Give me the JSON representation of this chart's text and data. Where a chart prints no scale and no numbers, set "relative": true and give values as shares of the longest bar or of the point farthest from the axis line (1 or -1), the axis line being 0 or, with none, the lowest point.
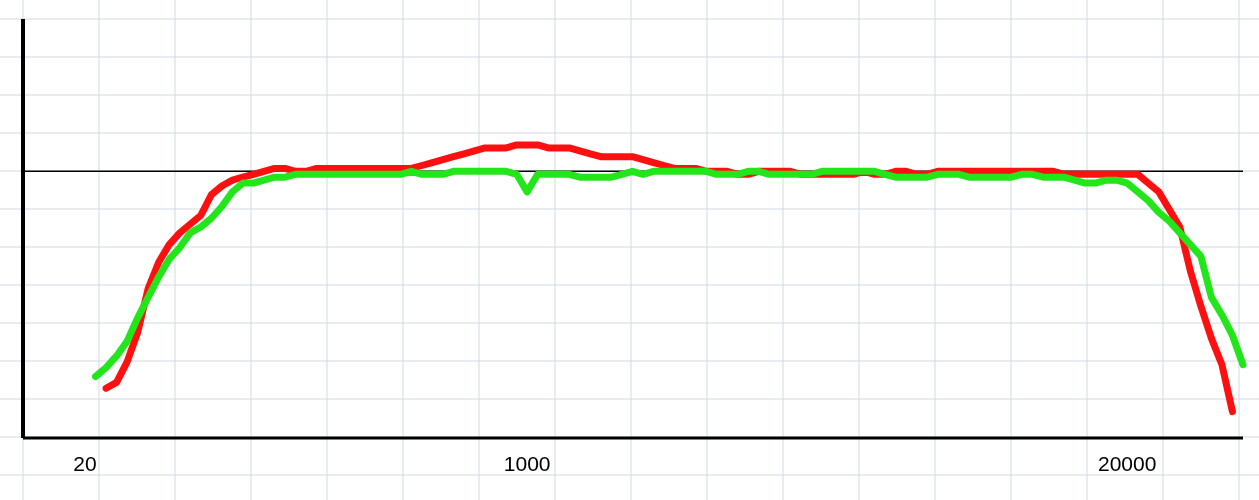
{
  "chart_data": {
    "type": "line",
    "relative": true,
    "grid": true,
    "line_style": "solid",
    "categories": [
      "20",
      null,
      null,
      null,
      null,
      null,
      null,
      null,
      null,
      null,
      null,
      null,
      null,
      null,
      null,
      null,
      null,
      null,
      null,
      null,
      null,
      null,
      null,
      null,
      null,
      null,
      null,
      null,
      null,
      null,
      null,
      null,
      null,
      null,
      null,
      null,
      null,
      null,
      null,
      null,
      null,
      null,
      "1000",
      null,
      null,
      null,
      null,
      null,
      null,
      null,
      null,
      null,
      null,
      null,
      null,
      null,
      null,
      null,
      null,
      null,
      null,
      null,
      null,
      null,
      null,
      null,
      null,
      null,
      null,
      null,
      null,
      null,
      null,
      null,
      null,
      null,
      null,
      null,
      null,
      null,
      null,
      null,
      null,
      null,
      null,
      null,
      null,
      null,
      null,
      null,
      null,
      null,
      null,
      null,
      null,
      null,
      null,
      null,
      null,
      "20000",
      null,
      null,
      null,
      null,
      null,
      null,
      null,
      null,
      null,
      null,
      null
    ],
    "series": [
      {
        "color": "#ff1010",
        "values": [
          null,
          null,
          0.17,
          0.19,
          0.26,
          0.36,
          0.51,
          0.6,
          0.66,
          0.7,
          0.73,
          0.76,
          0.83,
          0.86,
          0.88,
          0.89,
          0.9,
          0.91,
          0.92,
          0.92,
          0.91,
          0.91,
          0.92,
          0.92,
          0.92,
          0.92,
          0.92,
          0.92,
          0.92,
          0.92,
          0.92,
          0.92,
          0.93,
          0.94,
          0.95,
          0.96,
          0.97,
          0.98,
          0.99,
          0.99,
          0.99,
          1,
          1,
          1,
          0.99,
          0.99,
          0.99,
          0.98,
          0.97,
          0.96,
          0.96,
          0.96,
          0.96,
          0.95,
          0.94,
          0.93,
          0.92,
          0.92,
          0.92,
          0.91,
          0.91,
          0.91,
          0.9,
          0.9,
          0.91,
          0.91,
          0.91,
          0.91,
          0.9,
          0.9,
          0.9,
          0.9,
          0.9,
          0.9,
          0.91,
          0.9,
          0.9,
          0.91,
          0.91,
          0.9,
          0.9,
          0.91,
          0.91,
          0.91,
          0.91,
          0.91,
          0.91,
          0.91,
          0.91,
          0.91,
          0.91,
          0.91,
          0.91,
          0.9,
          0.9,
          0.9,
          0.9,
          0.9,
          0.9,
          0.9,
          0.9,
          0.87,
          0.84,
          0.78,
          0.72,
          0.57,
          0.45,
          0.34,
          0.25,
          0.09,
          null
        ]
      },
      {
        "color": "#22e51a",
        "values": [
          null,
          0.21,
          0.24,
          0.28,
          0.33,
          0.41,
          0.48,
          0.55,
          0.61,
          0.65,
          0.7,
          0.72,
          0.75,
          0.79,
          0.84,
          0.87,
          0.87,
          0.88,
          0.89,
          0.89,
          0.9,
          0.9,
          0.9,
          0.9,
          0.9,
          0.9,
          0.9,
          0.9,
          0.9,
          0.9,
          0.9,
          0.91,
          0.9,
          0.9,
          0.9,
          0.91,
          0.91,
          0.91,
          0.91,
          0.91,
          0.91,
          0.9,
          0.84,
          0.9,
          0.9,
          0.9,
          0.9,
          0.89,
          0.89,
          0.89,
          0.89,
          0.9,
          0.91,
          0.9,
          0.91,
          0.91,
          0.91,
          0.91,
          0.91,
          0.91,
          0.9,
          0.9,
          0.9,
          0.91,
          0.91,
          0.9,
          0.9,
          0.9,
          0.9,
          0.9,
          0.91,
          0.91,
          0.91,
          0.91,
          0.91,
          0.91,
          0.9,
          0.89,
          0.89,
          0.89,
          0.89,
          0.9,
          0.9,
          0.9,
          0.89,
          0.89,
          0.89,
          0.89,
          0.89,
          0.9,
          0.9,
          0.89,
          0.89,
          0.89,
          0.88,
          0.87,
          0.87,
          0.88,
          0.88,
          0.87,
          0.84,
          0.81,
          0.77,
          0.74,
          0.7,
          0.66,
          0.62,
          0.48,
          0.42,
          0.35,
          0.25
        ]
      }
    ],
    "ref_lines": [
      {
        "axis": "y",
        "value": 0.91,
        "color": "#000000"
      }
    ]
  }
}
